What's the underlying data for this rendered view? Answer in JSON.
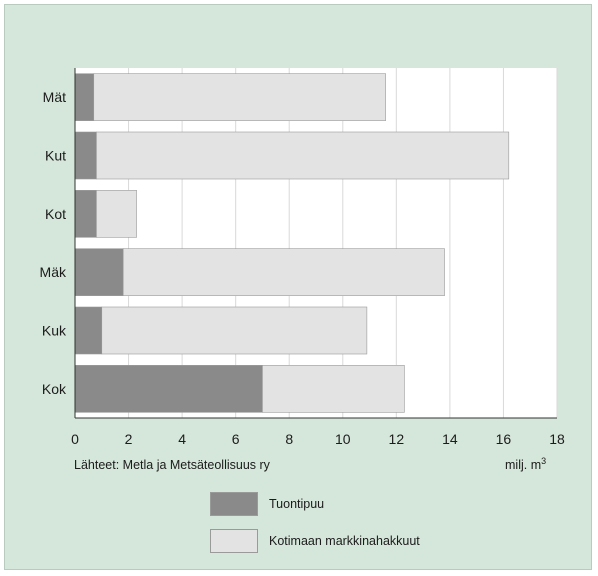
{
  "chart_data": {
    "type": "bar",
    "orientation": "horizontal",
    "stacked": true,
    "categories": [
      "Mät",
      "Kut",
      "Kot",
      "Mäk",
      "Kuk",
      "Kok"
    ],
    "series": [
      {
        "name": "Tuontipuu",
        "values": [
          0.7,
          0.8,
          0.8,
          1.8,
          1.0,
          7.0
        ],
        "color": "#8a8a8a"
      },
      {
        "name": "Kotimaan markkinahakkuut",
        "values": [
          10.9,
          15.4,
          1.5,
          12.0,
          9.9,
          5.3
        ],
        "color": "#e3e3e3"
      }
    ],
    "xlim": [
      0,
      18
    ],
    "xticks": [
      "0",
      "2",
      "4",
      "6",
      "8",
      "10",
      "12",
      "14",
      "16",
      "18"
    ],
    "grid": true,
    "legend_position": "bottom"
  },
  "source_note": "Lähteet: Metla ja Metsäteollisuus ry",
  "unit": {
    "base": "milj. m",
    "exponent": "3"
  },
  "colors": {
    "background": "#d5e6da",
    "plot_area": "#ffffff",
    "gridline": "#d9d9d9",
    "axis": "#333333"
  }
}
